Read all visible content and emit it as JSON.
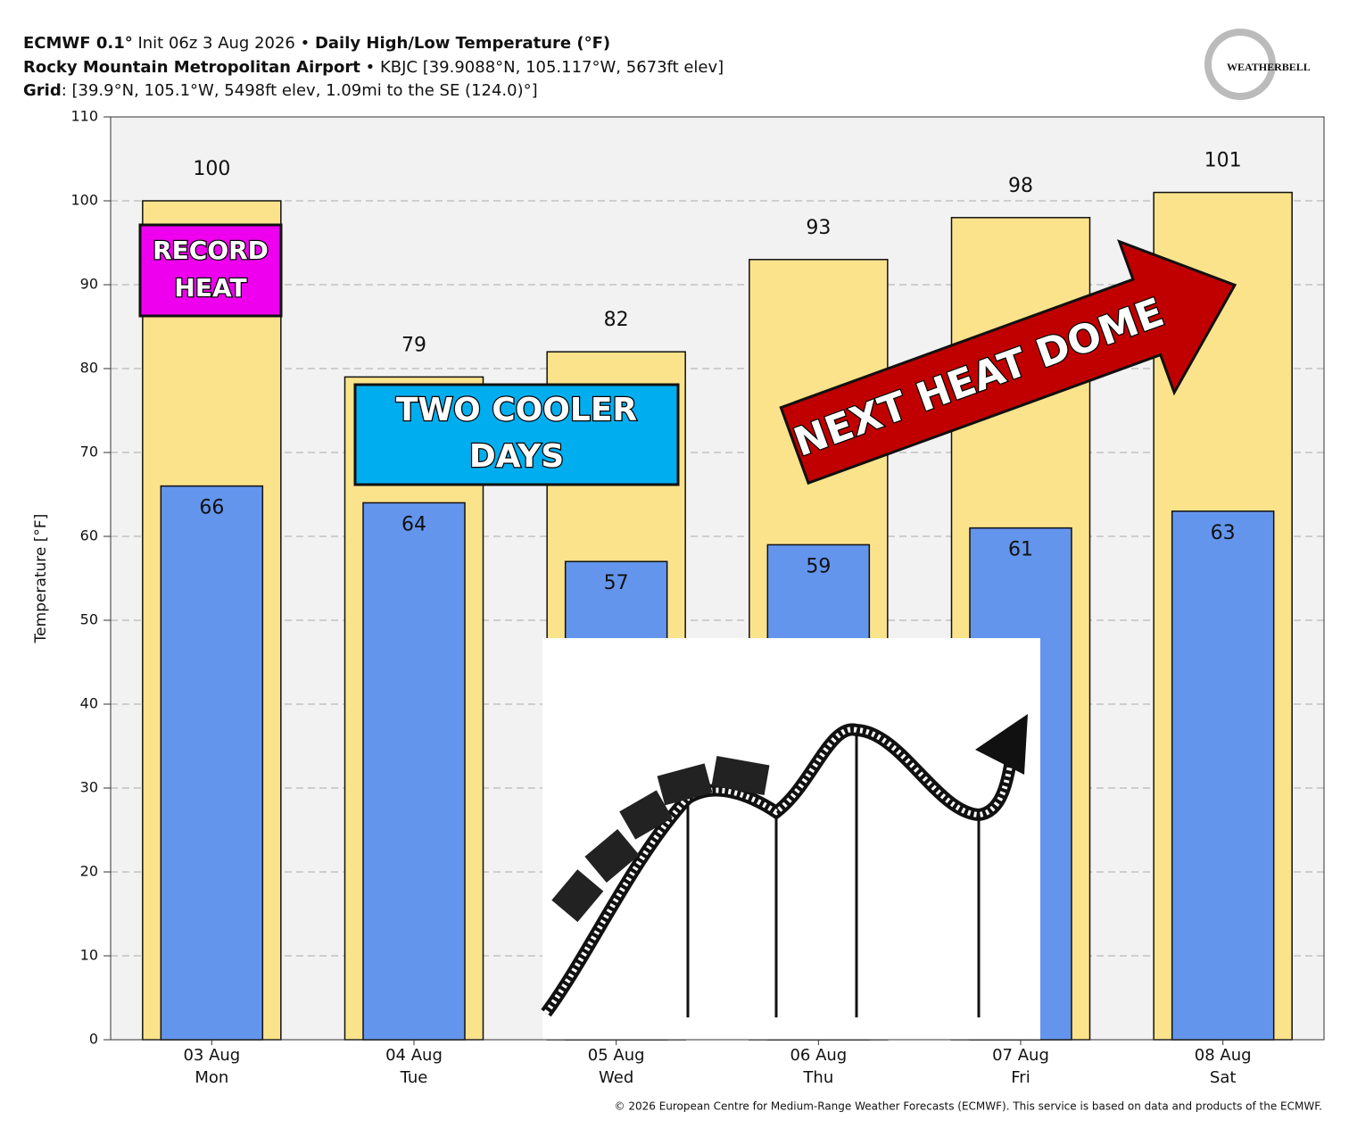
{
  "chart_data": {
    "type": "bar",
    "title": [
      "ECMWF 0.1°",
      " Init 06z 3 Aug 2026 • ",
      "Daily High/Low Temperature (°F)"
    ],
    "subtitle": [
      "Rocky Mountain Metropolitan Airport",
      " • KBJC [39.9088°N, 105.117°W, 5673ft elev]"
    ],
    "grid_info": [
      "Grid",
      ": [39.9°N, 105.1°W, 5498ft elev, 1.09mi to the SE (124.0)°]"
    ],
    "ylabel": "Temperature [°F]",
    "categories": [
      [
        "03 Aug",
        "Mon"
      ],
      [
        "04 Aug",
        "Tue"
      ],
      [
        "05 Aug",
        "Wed"
      ],
      [
        "06 Aug",
        "Thu"
      ],
      [
        "07 Aug",
        "Fri"
      ],
      [
        "08 Aug",
        "Sat"
      ]
    ],
    "series": [
      {
        "color": "#fbe38c",
        "values": [
          100,
          79,
          82,
          93,
          98,
          101
        ]
      },
      {
        "color": "#6495ed",
        "values": [
          66,
          64,
          57,
          59,
          61,
          63
        ]
      }
    ],
    "ylim": [
      0,
      110
    ],
    "yticks": [
      0,
      10,
      20,
      30,
      40,
      50,
      60,
      70,
      80,
      90,
      100,
      110
    ],
    "grid": true,
    "annotations": [
      "RECORD HEAT",
      "TWO COOLER DAYS",
      "NEXT HEAT DOME"
    ],
    "logo": "WEATHERBELL",
    "credit": "© 2026 European Centre for Medium-Range Weather Forecasts (ECMWF). This service is based on data and products of the ECMWF."
  }
}
